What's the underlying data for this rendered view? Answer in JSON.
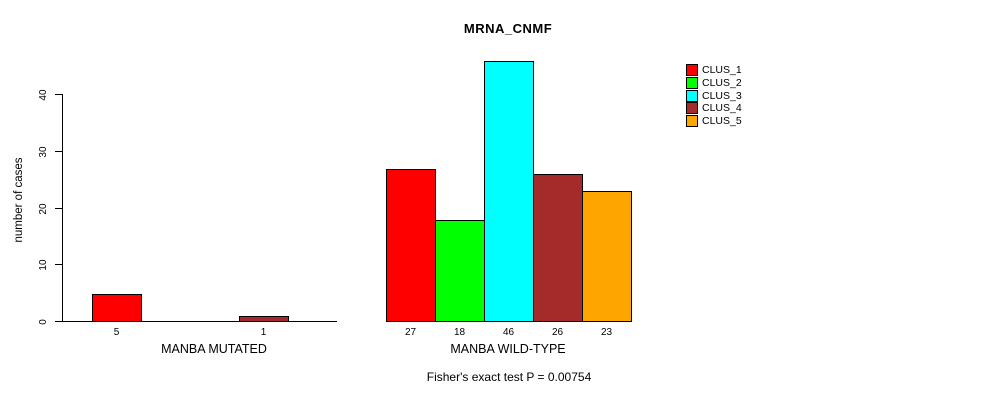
{
  "title": "MRNA_CNMF",
  "footer": "Fisher's exact test P = 0.00754",
  "colors": {
    "clus_1": "#FF0000",
    "clus_2": "#00FF00",
    "clus_3": "#00FFFF",
    "clus_4": "#A52A2A",
    "clus_5": "#FFA500",
    "axis": "#000000",
    "background": "#FFFFFF"
  },
  "chart_data": {
    "type": "bar",
    "title": "MRNA_CNMF",
    "xlabel": "",
    "ylabel": "number of cases",
    "ylim": [
      0,
      46
    ],
    "yticks": [
      0,
      10,
      20,
      30,
      40
    ],
    "grid": false,
    "legend_position": "top-right-outside",
    "categories": [
      "MANBA MUTATED",
      "MANBA WILD-TYPE"
    ],
    "series": [
      {
        "name": "CLUS_1",
        "color": "#FF0000",
        "values": [
          5,
          27
        ]
      },
      {
        "name": "CLUS_2",
        "color": "#00FF00",
        "values": [
          0,
          18
        ]
      },
      {
        "name": "CLUS_3",
        "color": "#00FFFF",
        "values": [
          0,
          46
        ]
      },
      {
        "name": "CLUS_4",
        "color": "#A52A2A",
        "values": [
          1,
          26
        ]
      },
      {
        "name": "CLUS_5",
        "color": "#FFA500",
        "values": [
          0,
          23
        ]
      }
    ],
    "bar_value_labels_shown": [
      "5",
      "1",
      "27",
      "18",
      "46",
      "26",
      "23"
    ],
    "annotation": "Fisher's exact test P = 0.00754"
  }
}
